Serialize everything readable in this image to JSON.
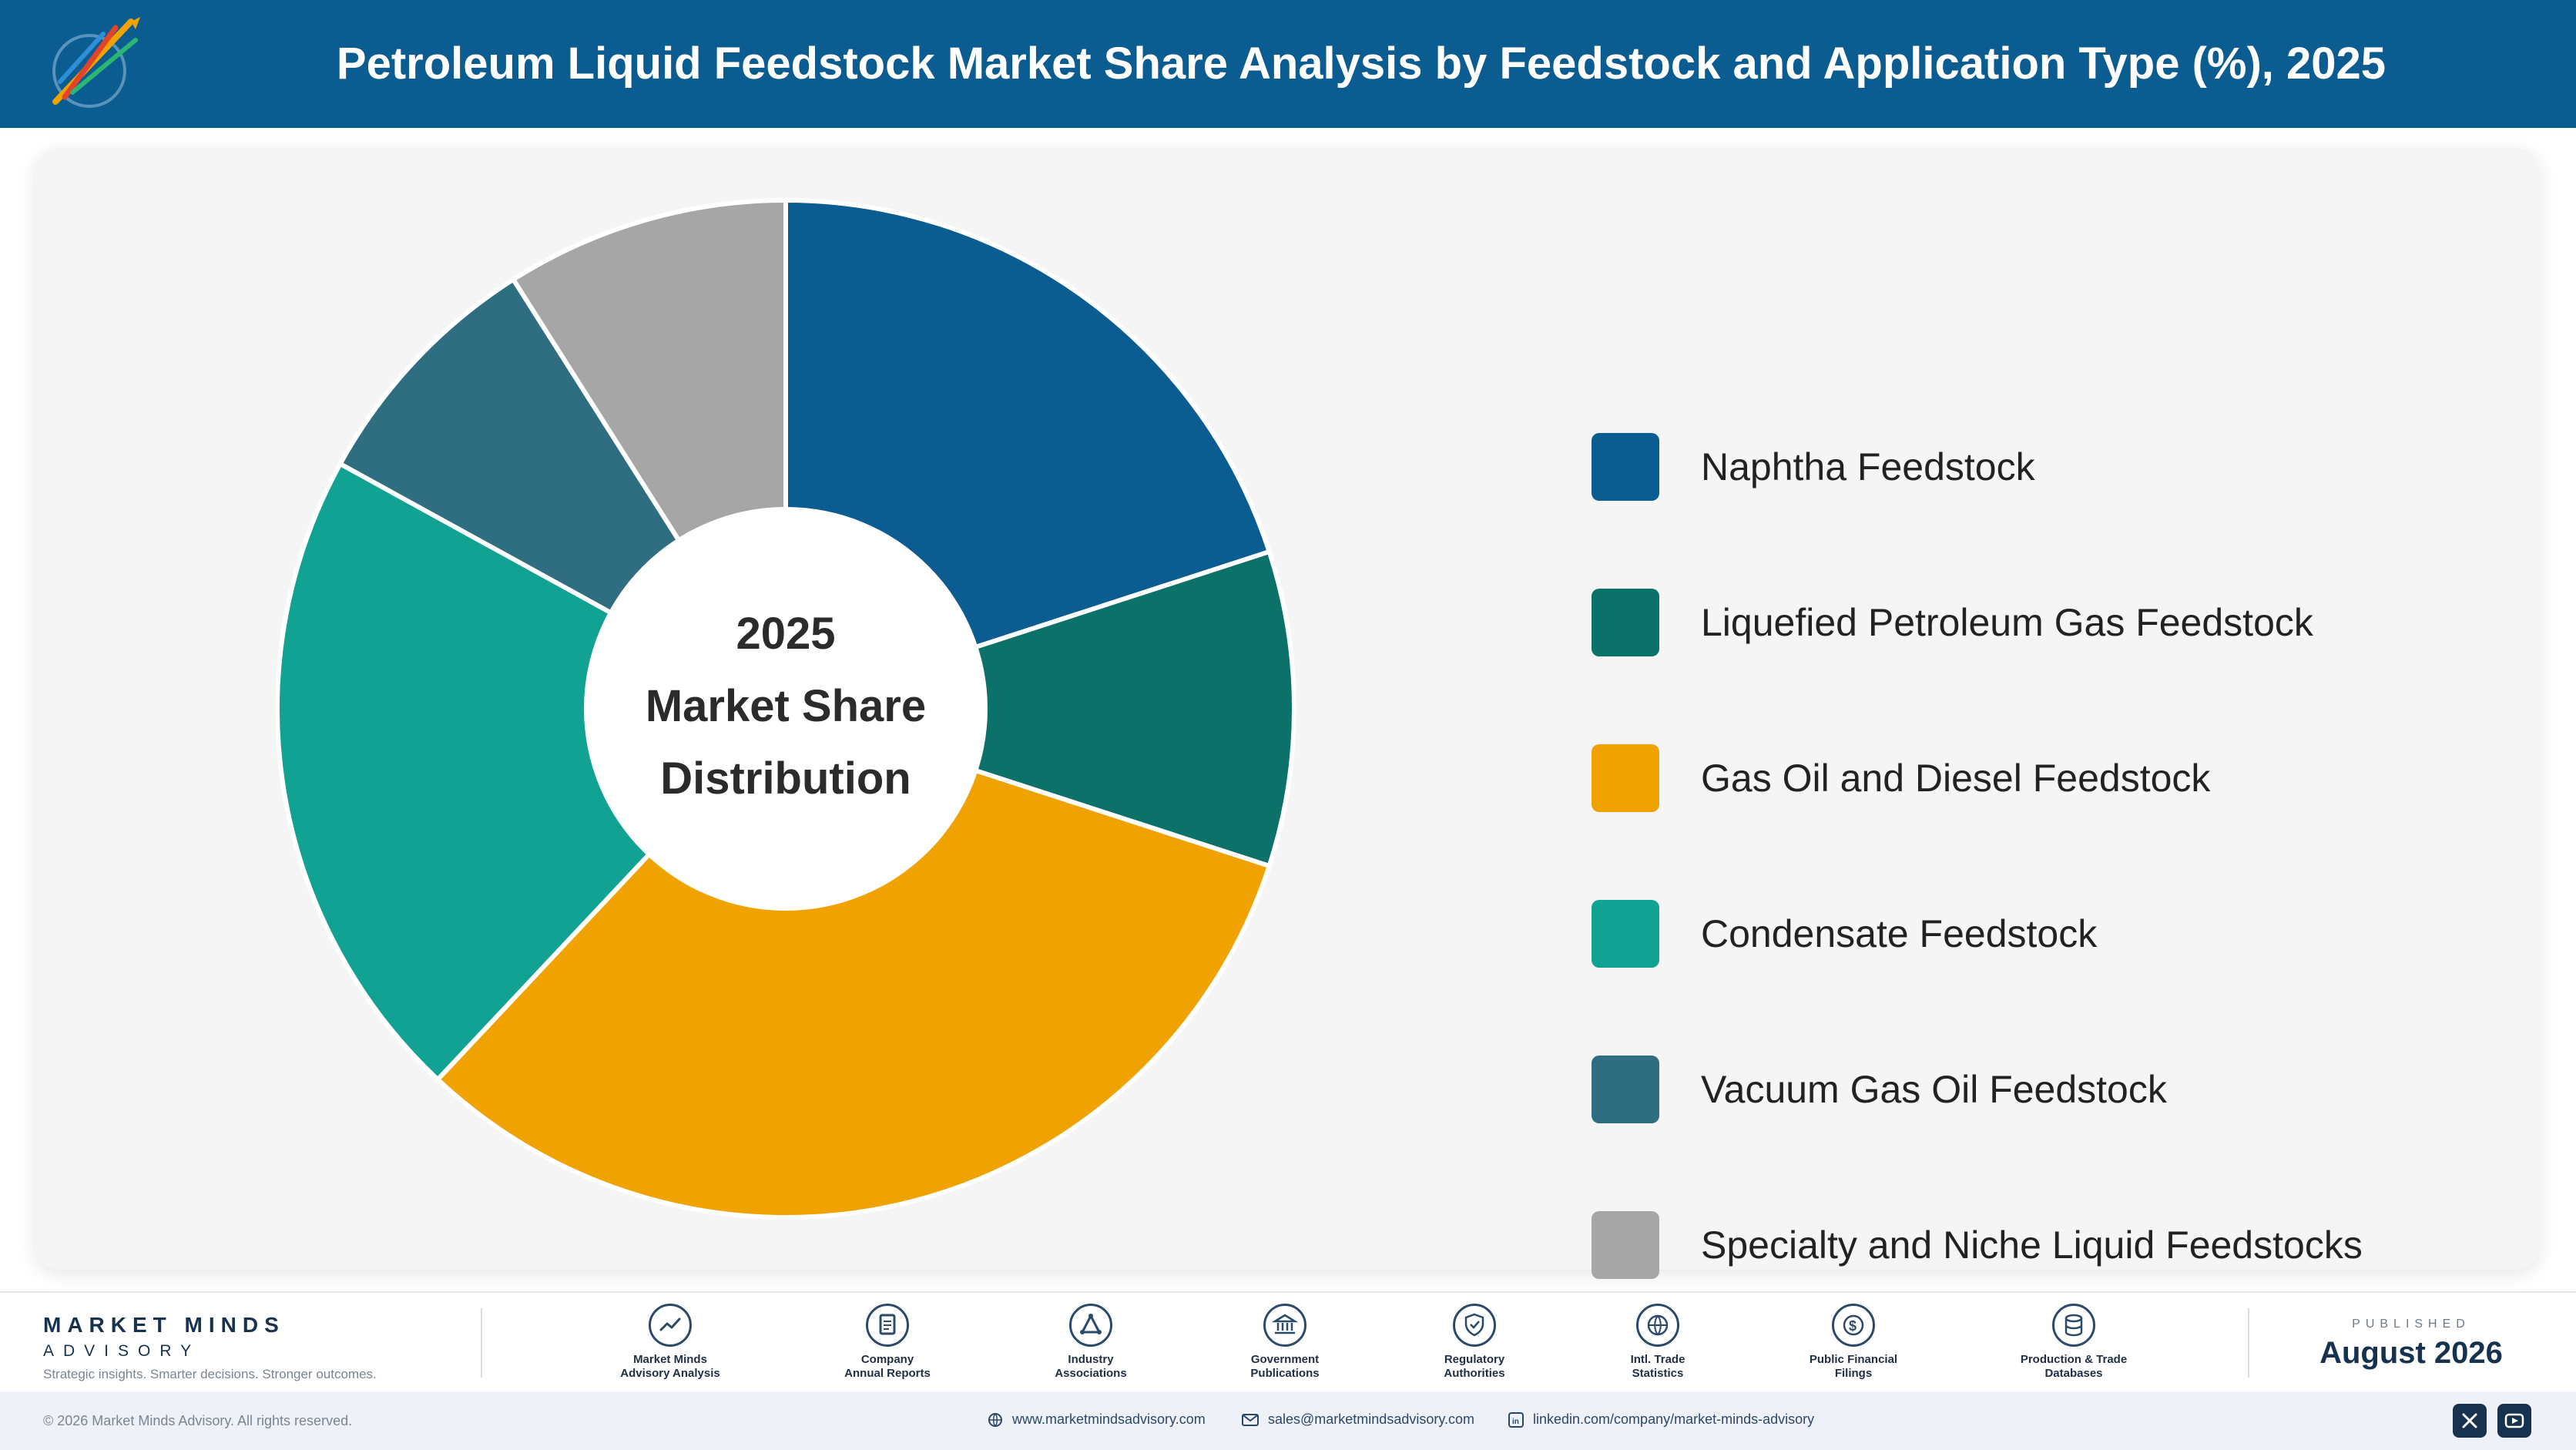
{
  "header": {
    "title": "Petroleum Liquid Feedstock Market Share Analysis by Feedstock and Application Type (%), 2025",
    "logo_icon": "market-minds-logo"
  },
  "chart_data": {
    "type": "pie",
    "title": "Petroleum Liquid Feedstock Market Share Analysis by Feedstock and Application Type (%), 2025",
    "center_label": [
      "2025",
      "Market Share",
      "Distribution"
    ],
    "categories": [
      "Naphtha Feedstock",
      "Liquefied Petroleum Gas Feedstock",
      "Gas Oil and Diesel Feedstock",
      "Condensate Feedstock",
      "Vacuum Gas Oil Feedstock",
      "Specialty and Niche Liquid Feedstocks"
    ],
    "values": [
      20,
      10,
      32,
      21,
      8,
      9
    ],
    "colors": [
      "#0a5c91",
      "#0c7169",
      "#f0a300",
      "#12a293",
      "#2f6d80",
      "#a6a6a6"
    ],
    "legend_position": "right"
  },
  "footer": {
    "brand": {
      "name": "MARKET MINDS",
      "sub": "ADVISORY",
      "tagline": "Strategic insights. Smarter decisions. Stronger outcomes."
    },
    "sources": [
      {
        "line1": "Market Minds",
        "line2": "Advisory Analysis",
        "icon": "trend-chart-icon"
      },
      {
        "line1": "Company",
        "line2": "Annual Reports",
        "icon": "document-icon"
      },
      {
        "line1": "Industry",
        "line2": "Associations",
        "icon": "network-icon"
      },
      {
        "line1": "Government",
        "line2": "Publications",
        "icon": "government-building-icon"
      },
      {
        "line1": "Regulatory",
        "line2": "Authorities",
        "icon": "shield-check-icon"
      },
      {
        "line1": "Intl. Trade",
        "line2": "Statistics",
        "icon": "globe-icon"
      },
      {
        "line1": "Public Financial",
        "line2": "Filings",
        "icon": "dollar-coin-icon"
      },
      {
        "line1": "Production & Trade",
        "line2": "Databases",
        "icon": "database-icon"
      }
    ],
    "published_label": "PUBLISHED",
    "published_date": "August 2026",
    "copyright": "© 2026 Market Minds Advisory. All rights reserved.",
    "website": "www.marketmindsadvisory.com",
    "email": "sales@marketmindsadvisory.com",
    "linkedin": "linkedin.com/company/market-minds-advisory"
  }
}
